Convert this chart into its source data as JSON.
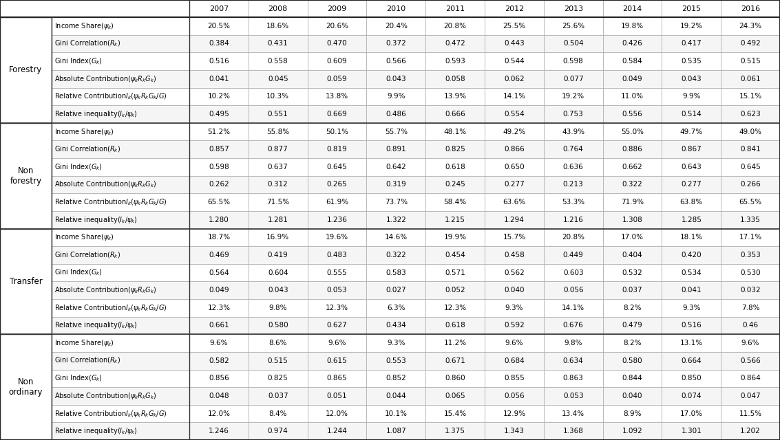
{
  "years": [
    "2007",
    "2008",
    "2009",
    "2010",
    "2011",
    "2012",
    "2013",
    "2014",
    "2015",
    "2016"
  ],
  "sections": [
    {
      "name": "Forestry",
      "rows": [
        {
          "label": "Income Share($\\psi_k$)",
          "values": [
            "20.5%",
            "18.6%",
            "20.6%",
            "20.4%",
            "20.8%",
            "25.5%",
            "25.6%",
            "19.8%",
            "19.2%",
            "24.3%"
          ]
        },
        {
          "label": "Gini Correlation($R_k$)",
          "values": [
            "0.384",
            "0.431",
            "0.470",
            "0.372",
            "0.472",
            "0.443",
            "0.504",
            "0.426",
            "0.417",
            "0.492"
          ]
        },
        {
          "label": "Gini Index($G_k$)",
          "values": [
            "0.516",
            "0.558",
            "0.609",
            "0.566",
            "0.593",
            "0.544",
            "0.598",
            "0.584",
            "0.535",
            "0.515"
          ]
        },
        {
          "label": "Absolute Contribution($\\psi_k R_k G_k$)",
          "values": [
            "0.041",
            "0.045",
            "0.059",
            "0.043",
            "0.058",
            "0.062",
            "0.077",
            "0.049",
            "0.043",
            "0.061"
          ]
        },
        {
          "label": "Relative Contribution$I_k$($\\psi_k R_k G_k/G$)",
          "values": [
            "10.2%",
            "10.3%",
            "13.8%",
            "9.9%",
            "13.9%",
            "14.1%",
            "19.2%",
            "11.0%",
            "9.9%",
            "15.1%"
          ]
        },
        {
          "label": "Relative inequality($I_k/\\psi_k$)",
          "values": [
            "0.495",
            "0.551",
            "0.669",
            "0.486",
            "0.666",
            "0.554",
            "0.753",
            "0.556",
            "0.514",
            "0.623"
          ]
        }
      ]
    },
    {
      "name": "Non\nforestry",
      "rows": [
        {
          "label": "Income Share($\\psi_k$)",
          "values": [
            "51.2%",
            "55.8%",
            "50.1%",
            "55.7%",
            "48.1%",
            "49.2%",
            "43.9%",
            "55.0%",
            "49.7%",
            "49.0%"
          ]
        },
        {
          "label": "Gini Correlation($R_k$)",
          "values": [
            "0.857",
            "0.877",
            "0.819",
            "0.891",
            "0.825",
            "0.866",
            "0.764",
            "0.886",
            "0.867",
            "0.841"
          ]
        },
        {
          "label": "Gini Index($G_k$)",
          "values": [
            "0.598",
            "0.637",
            "0.645",
            "0.642",
            "0.618",
            "0.650",
            "0.636",
            "0.662",
            "0.643",
            "0.645"
          ]
        },
        {
          "label": "Absolute Contribution($\\psi_k R_k G_k$)",
          "values": [
            "0.262",
            "0.312",
            "0.265",
            "0.319",
            "0.245",
            "0.277",
            "0.213",
            "0.322",
            "0.277",
            "0.266"
          ]
        },
        {
          "label": "Relative Contribution$I_k$($\\psi_k R_k G_k/G$)",
          "values": [
            "65.5%",
            "71.5%",
            "61.9%",
            "73.7%",
            "58.4%",
            "63.6%",
            "53.3%",
            "71.9%",
            "63.8%",
            "65.5%"
          ]
        },
        {
          "label": "Relative inequality($I_k/\\psi_k$)",
          "values": [
            "1.280",
            "1.281",
            "1.236",
            "1.322",
            "1.215",
            "1.294",
            "1.216",
            "1.308",
            "1.285",
            "1.335"
          ]
        }
      ]
    },
    {
      "name": "Transfer",
      "rows": [
        {
          "label": "Income Share($\\psi_k$)",
          "values": [
            "18.7%",
            "16.9%",
            "19.6%",
            "14.6%",
            "19.9%",
            "15.7%",
            "20.8%",
            "17.0%",
            "18.1%",
            "17.1%"
          ]
        },
        {
          "label": "Gini Correlation($R_k$)",
          "values": [
            "0.469",
            "0.419",
            "0.483",
            "0.322",
            "0.454",
            "0.458",
            "0.449",
            "0.404",
            "0.420",
            "0.353"
          ]
        },
        {
          "label": "Gini Index($G_k$)",
          "values": [
            "0.564",
            "0.604",
            "0.555",
            "0.583",
            "0.571",
            "0.562",
            "0.603",
            "0.532",
            "0.534",
            "0.530"
          ]
        },
        {
          "label": "Absolute Contribution($\\psi_k R_k G_k$)",
          "values": [
            "0.049",
            "0.043",
            "0.053",
            "0.027",
            "0.052",
            "0.040",
            "0.056",
            "0.037",
            "0.041",
            "0.032"
          ]
        },
        {
          "label": "Relative Contribution$I_k$($\\psi_k R_k G_k/G$)",
          "values": [
            "12.3%",
            "9.8%",
            "12.3%",
            "6.3%",
            "12.3%",
            "9.3%",
            "14.1%",
            "8.2%",
            "9.3%",
            "7.8%"
          ]
        },
        {
          "label": "Relative inequality($I_k/\\psi_k$)",
          "values": [
            "0.661",
            "0.580",
            "0.627",
            "0.434",
            "0.618",
            "0.592",
            "0.676",
            "0.479",
            "0.516",
            "0.46"
          ]
        }
      ]
    },
    {
      "name": "Non\nordinary",
      "rows": [
        {
          "label": "Income Share($\\psi_k$)",
          "values": [
            "9.6%",
            "8.6%",
            "9.6%",
            "9.3%",
            "11.2%",
            "9.6%",
            "9.8%",
            "8.2%",
            "13.1%",
            "9.6%"
          ]
        },
        {
          "label": "Gini Correlation($R_k$)",
          "values": [
            "0.582",
            "0.515",
            "0.615",
            "0.553",
            "0.671",
            "0.684",
            "0.634",
            "0.580",
            "0.664",
            "0.566"
          ]
        },
        {
          "label": "Gini Index($G_k$)",
          "values": [
            "0.856",
            "0.825",
            "0.865",
            "0.852",
            "0.860",
            "0.855",
            "0.863",
            "0.844",
            "0.850",
            "0.864"
          ]
        },
        {
          "label": "Absolute Contribution($\\psi_k R_k G_k$)",
          "values": [
            "0.048",
            "0.037",
            "0.051",
            "0.044",
            "0.065",
            "0.056",
            "0.053",
            "0.040",
            "0.074",
            "0.047"
          ]
        },
        {
          "label": "Relative Contribution$I_k$($\\psi_k R_k G_k/G$)",
          "values": [
            "12.0%",
            "8.4%",
            "12.0%",
            "10.1%",
            "15.4%",
            "12.9%",
            "13.4%",
            "8.9%",
            "17.0%",
            "11.5%"
          ]
        },
        {
          "label": "Relative inequality($I_k/\\psi_k$)",
          "values": [
            "1.246",
            "0.974",
            "1.244",
            "1.087",
            "1.375",
            "1.343",
            "1.368",
            "1.092",
            "1.301",
            "1.202"
          ]
        }
      ]
    }
  ],
  "border_color": "#aaaaaa",
  "section_border_color": "#333333",
  "text_color": "#000000"
}
